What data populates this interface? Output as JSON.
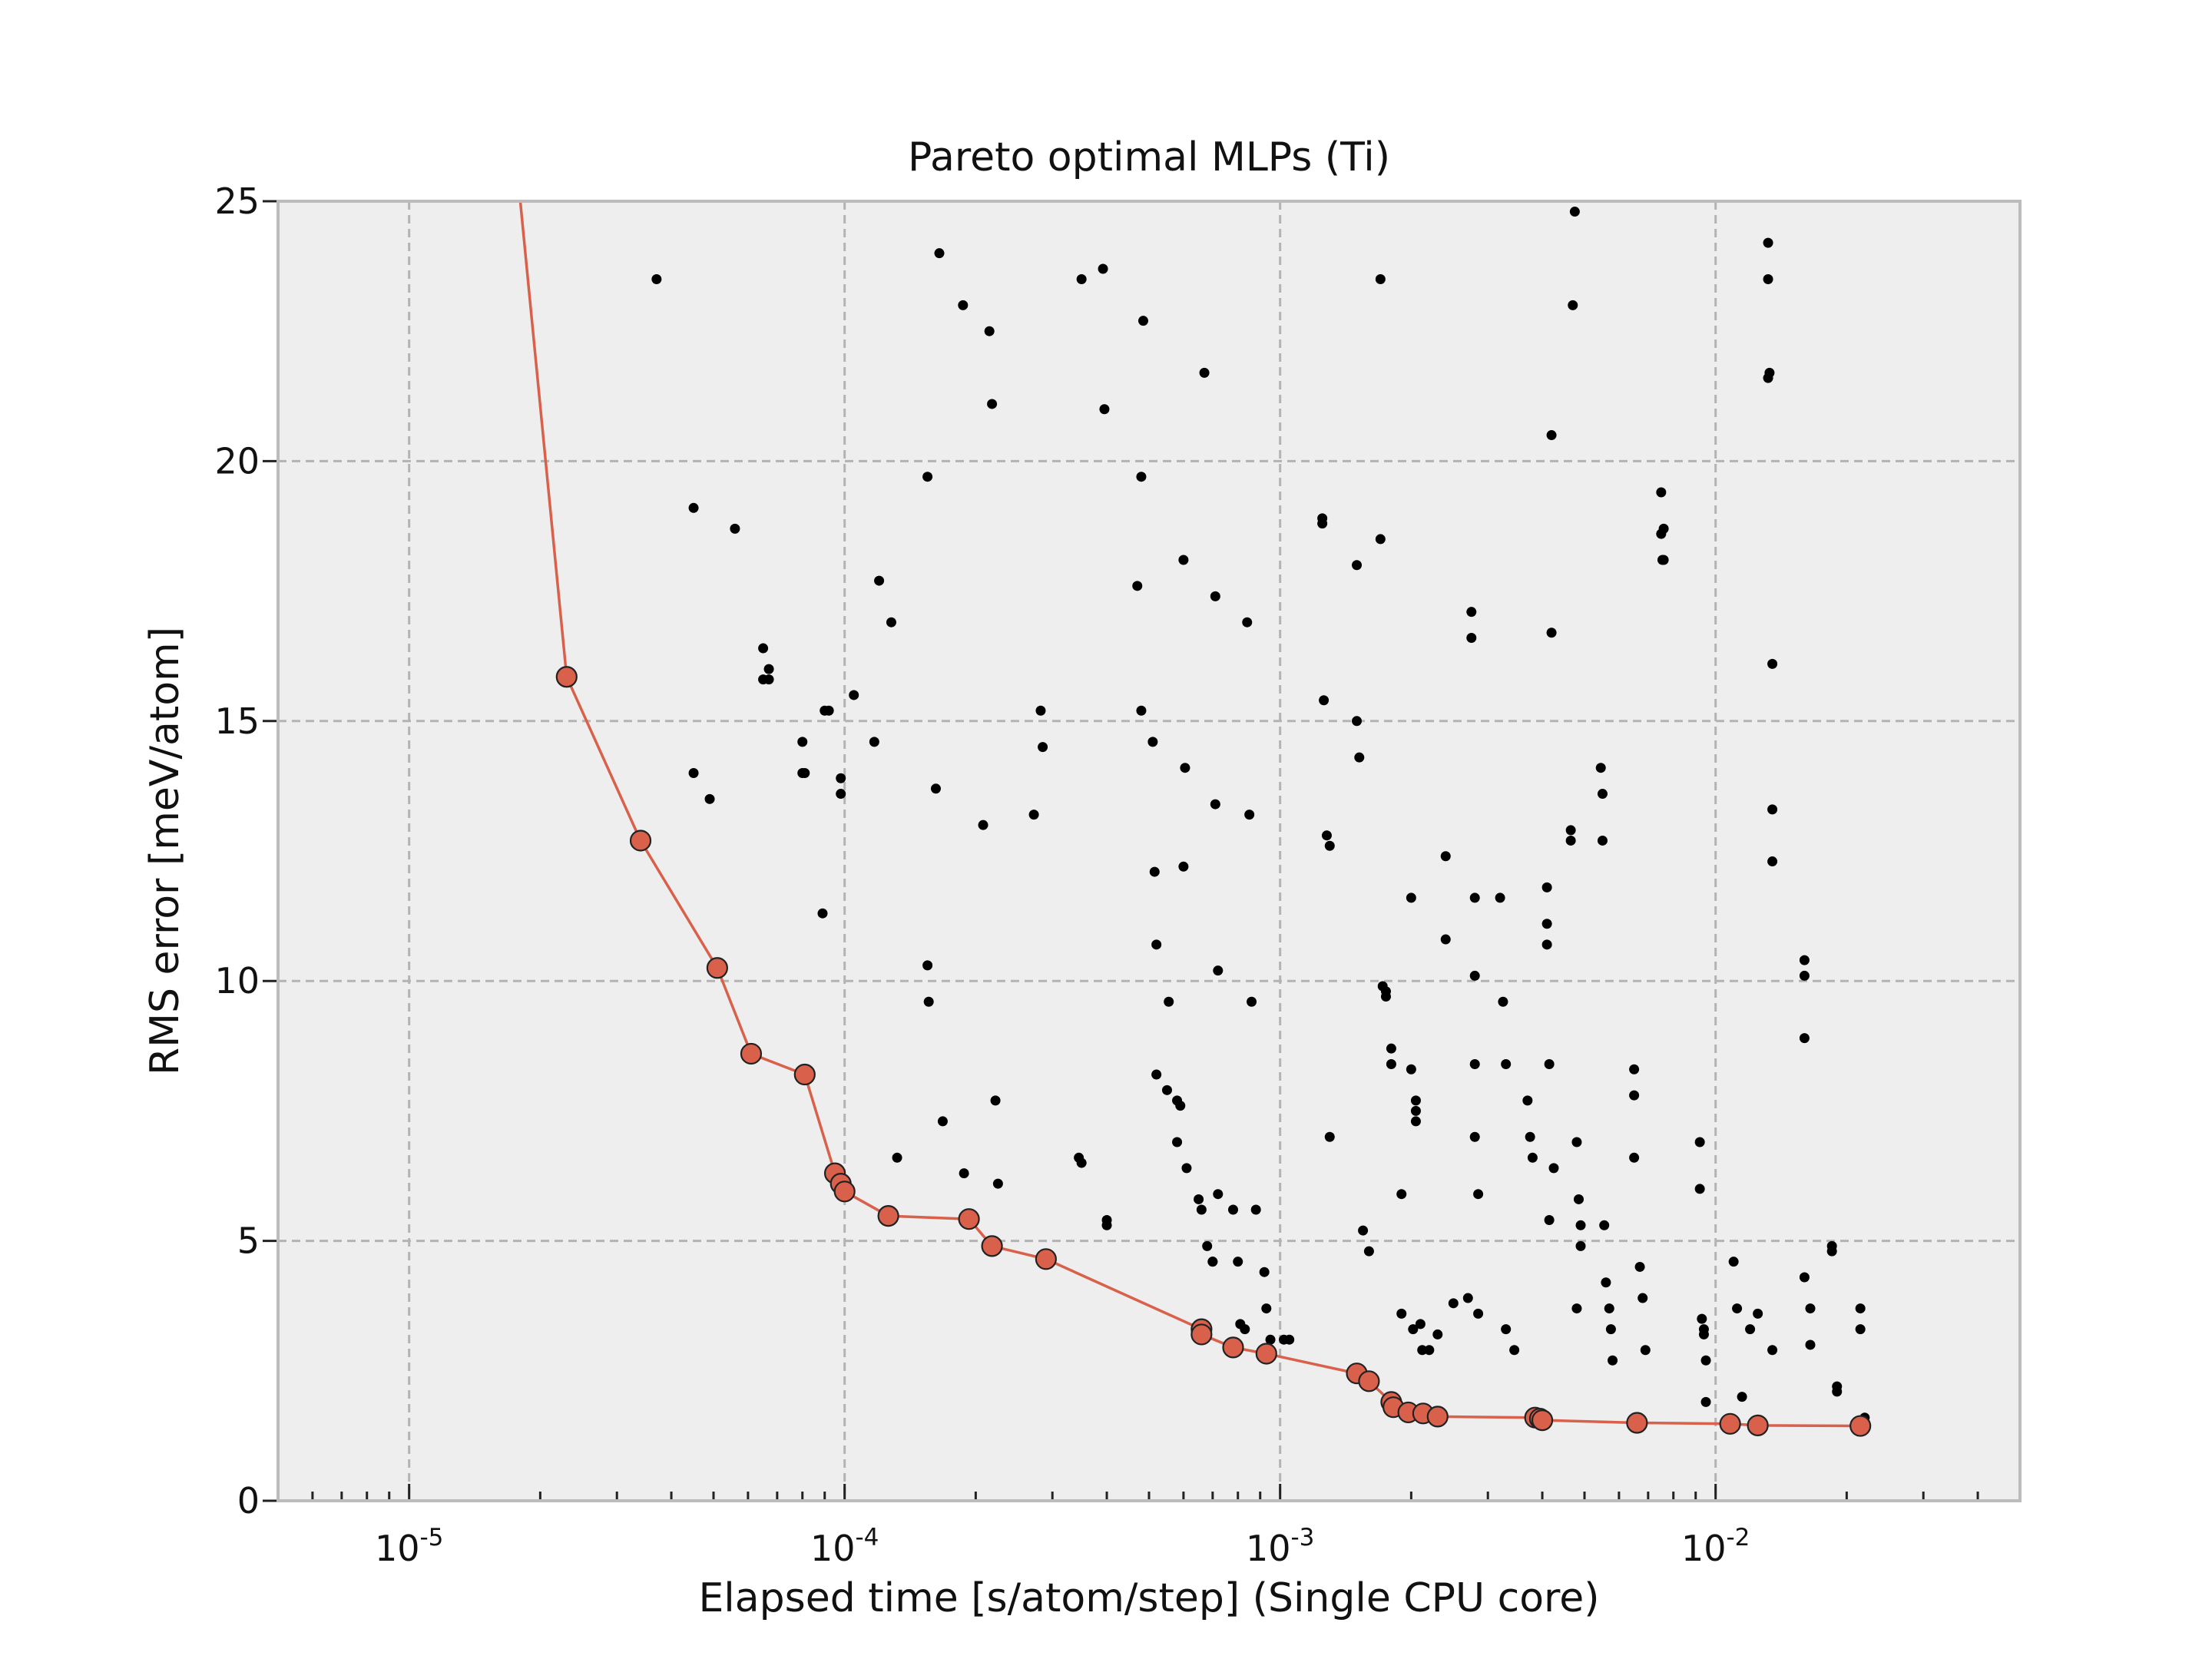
{
  "chart_data": {
    "type": "scatter",
    "title": "Pareto optimal MLPs (Ti)",
    "xlabel": "Elapsed time [s/atom/step] (Single CPU core)",
    "ylabel": "RMS error [meV/atom]",
    "xscale": "log",
    "xlim": [
      5e-06,
      0.05
    ],
    "ylim": [
      0,
      25
    ],
    "grid": true,
    "x_ticks": [
      {
        "base": "10",
        "exp": "-5",
        "value": 1e-05
      },
      {
        "base": "10",
        "exp": "-4",
        "value": 0.0001
      },
      {
        "base": "10",
        "exp": "-3",
        "value": 0.001
      },
      {
        "base": "10",
        "exp": "-2",
        "value": 0.01
      }
    ],
    "y_ticks": [
      {
        "label": "0",
        "value": 0
      },
      {
        "label": "5",
        "value": 5
      },
      {
        "label": "10",
        "value": 10
      },
      {
        "label": "15",
        "value": 15
      },
      {
        "label": "20",
        "value": 20
      },
      {
        "label": "25",
        "value": 25
      }
    ],
    "colors": {
      "background": "#eeeeee",
      "pareto": "#d9604a",
      "points": "#000000"
    },
    "series": [
      {
        "kind": "pareto-front",
        "x": [
          1.8e-05,
          2.3e-05,
          3.4e-05,
          5.1e-05,
          6.1e-05,
          8.1e-05,
          9.5e-05,
          9.8e-05,
          0.0001,
          0.000126,
          0.000193,
          0.000218,
          0.00029,
          0.00066,
          0.00066,
          0.00078,
          0.00093,
          0.0015,
          0.0016,
          0.0018,
          0.00182,
          0.00197,
          0.00213,
          0.0023,
          0.00385,
          0.00395,
          0.004,
          0.0066,
          0.0108,
          0.0125,
          0.0215
        ],
        "y": [
          25.0,
          15.85,
          12.7,
          10.25,
          8.6,
          8.2,
          6.3,
          6.1,
          5.95,
          5.48,
          5.42,
          4.9,
          4.65,
          3.3,
          3.2,
          2.95,
          2.83,
          2.45,
          2.3,
          1.9,
          1.8,
          1.7,
          1.68,
          1.62,
          1.6,
          1.58,
          1.55,
          1.5,
          1.48,
          1.45,
          1.44
        ]
      },
      {
        "kind": "candidates",
        "x": [
          3.7e-05,
          4.5e-05,
          4.5e-05,
          4.9e-05,
          5.6e-05,
          6.5e-05,
          6.5e-05,
          6.7e-05,
          6.7e-05,
          8e-05,
          8e-05,
          8.1e-05,
          8.9e-05,
          9e-05,
          9.2e-05,
          9.8e-05,
          9.8e-05,
          0.000105,
          0.000117,
          0.00012,
          0.000128,
          0.000132,
          0.000155,
          0.000155,
          0.000156,
          0.000162,
          0.000165,
          0.000168,
          0.000187,
          0.000188,
          0.000208,
          0.000215,
          0.000218,
          0.000222,
          0.000225,
          0.000272,
          0.000282,
          0.000285,
          0.000345,
          0.00035,
          0.00035,
          0.000392,
          0.000395,
          0.0004,
          0.0004,
          0.00047,
          0.00048,
          0.00048,
          0.000485,
          0.00051,
          0.000515,
          0.00052,
          0.00052,
          0.00055,
          0.000555,
          0.00058,
          0.00058,
          0.00059,
          0.0006,
          0.0006,
          0.000605,
          0.00061,
          0.00065,
          0.00066,
          0.00067,
          0.00068,
          0.0007,
          0.0007,
          0.00071,
          0.00071,
          0.00072,
          0.00072,
          0.00078,
          0.0008,
          0.00081,
          0.00083,
          0.00084,
          0.00085,
          0.00086,
          0.00088,
          0.00092,
          0.00093,
          0.00095,
          0.00102,
          0.00105,
          0.00125,
          0.00125,
          0.00126,
          0.00128,
          0.0013,
          0.0013,
          0.0015,
          0.0015,
          0.00152,
          0.00155,
          0.0016,
          0.0017,
          0.0017,
          0.00172,
          0.00175,
          0.00175,
          0.0018,
          0.0018,
          0.0019,
          0.0019,
          0.002,
          0.002,
          0.00202,
          0.00205,
          0.00205,
          0.00205,
          0.0021,
          0.00212,
          0.0022,
          0.0023,
          0.0024,
          0.0024,
          0.0025,
          0.0027,
          0.00275,
          0.00275,
          0.0028,
          0.0028,
          0.0028,
          0.0028,
          0.00285,
          0.00285,
          0.0032,
          0.00325,
          0.0033,
          0.0033,
          0.00345,
          0.0037,
          0.00375,
          0.0038,
          0.0041,
          0.0041,
          0.0041,
          0.00415,
          0.00415,
          0.0042,
          0.0042,
          0.00425,
          0.00465,
          0.00465,
          0.0047,
          0.00475,
          0.0048,
          0.0048,
          0.00485,
          0.0049,
          0.0049,
          0.00545,
          0.0055,
          0.0055,
          0.00555,
          0.0056,
          0.0057,
          0.00575,
          0.0058,
          0.0065,
          0.0065,
          0.0065,
          0.0067,
          0.0068,
          0.0069,
          0.0075,
          0.0075,
          0.00755,
          0.0076,
          0.0076,
          0.0092,
          0.0092,
          0.0093,
          0.0094,
          0.0094,
          0.0095,
          0.0095,
          0.011,
          0.0112,
          0.0115,
          0.012,
          0.0125,
          0.0132,
          0.0132,
          0.0132,
          0.0133,
          0.0135,
          0.0135,
          0.0135,
          0.0135,
          0.016,
          0.016,
          0.016,
          0.016,
          0.0165,
          0.0165,
          0.0185,
          0.0185,
          0.019,
          0.019,
          0.0215,
          0.0215,
          0.022
        ],
        "y": [
          23.5,
          19.1,
          14.0,
          13.5,
          18.7,
          16.4,
          15.8,
          16.0,
          15.8,
          14.6,
          14.0,
          14.0,
          11.3,
          15.2,
          15.2,
          13.9,
          13.6,
          15.5,
          14.6,
          17.7,
          16.9,
          6.6,
          19.7,
          10.3,
          9.6,
          13.7,
          24.0,
          7.3,
          23.0,
          6.3,
          13.0,
          22.5,
          21.1,
          7.7,
          6.1,
          13.2,
          15.2,
          14.5,
          6.6,
          6.5,
          23.5,
          23.7,
          21.0,
          5.4,
          5.3,
          17.6,
          19.7,
          15.2,
          22.7,
          14.6,
          12.1,
          10.7,
          8.2,
          7.9,
          9.6,
          6.9,
          7.7,
          7.6,
          18.1,
          12.2,
          14.1,
          6.4,
          5.8,
          5.6,
          21.7,
          4.9,
          4.6,
          4.6,
          17.4,
          13.4,
          10.2,
          5.9,
          5.6,
          4.6,
          3.4,
          3.3,
          16.9,
          13.2,
          9.6,
          5.6,
          4.4,
          3.7,
          3.1,
          3.1,
          3.1,
          18.9,
          18.8,
          15.4,
          12.8,
          12.6,
          7.0,
          18.0,
          15.0,
          14.3,
          5.2,
          4.8,
          23.5,
          18.5,
          9.9,
          9.7,
          9.8,
          8.7,
          8.4,
          5.9,
          3.6,
          11.6,
          8.3,
          3.3,
          7.7,
          7.5,
          7.3,
          3.4,
          2.9,
          2.9,
          3.2,
          12.4,
          10.8,
          3.8,
          3.9,
          17.1,
          16.6,
          11.6,
          10.1,
          8.4,
          7.0,
          5.9,
          3.6,
          11.6,
          9.6,
          8.4,
          3.3,
          2.9,
          7.7,
          7.0,
          6.6,
          11.8,
          11.1,
          10.7,
          8.4,
          5.4,
          20.5,
          16.7,
          6.4,
          12.9,
          12.7,
          23.0,
          24.8,
          6.9,
          3.7,
          5.8,
          5.3,
          4.9,
          14.1,
          13.6,
          12.7,
          5.3,
          4.2,
          3.7,
          3.3,
          2.7,
          8.3,
          7.8,
          6.6,
          4.5,
          3.9,
          2.9,
          19.4,
          18.6,
          18.1,
          18.7,
          18.1,
          6.9,
          6.0,
          3.5,
          3.3,
          3.2,
          2.7,
          1.9,
          4.6,
          3.7,
          2.0,
          3.3,
          3.6,
          24.2,
          23.5,
          21.6,
          21.7,
          16.1,
          13.3,
          12.3,
          2.9,
          10.4,
          10.1,
          8.9,
          4.3,
          3.7,
          3.0,
          4.9,
          4.8,
          2.2,
          2.1,
          3.7,
          3.3,
          1.6
        ]
      }
    ]
  }
}
